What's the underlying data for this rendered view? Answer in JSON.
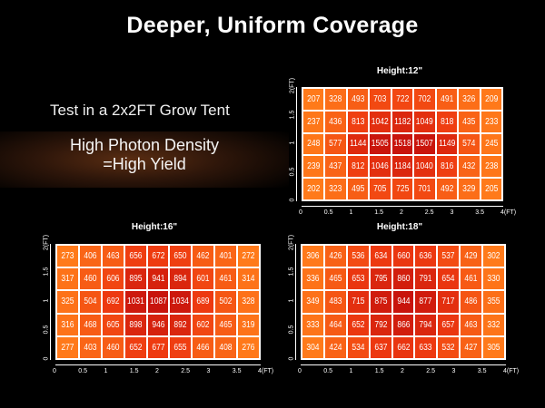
{
  "title": "Deeper, Uniform Coverage",
  "tent_text": "Test in a 2x2FT Grow Tent",
  "density_line1": "High Photon Density",
  "density_line2": "=High Yield",
  "axes": {
    "x_ticks": [
      "0",
      "0.5",
      "1",
      "1.5",
      "2",
      "2.5",
      "3",
      "3.5",
      "4(FT)"
    ],
    "y_ticks": [
      "0",
      "0.5",
      "1",
      "1.5",
      "2(FT)"
    ]
  },
  "colors": {
    "low": "#ff7a1a",
    "mid": "#ee3a10",
    "high": "#c8140c"
  },
  "panels": [
    {
      "id": "h12",
      "title": "Height:12\"",
      "rows": [
        [
          207,
          328,
          493,
          703,
          722,
          702,
          491,
          326,
          209
        ],
        [
          237,
          436,
          813,
          1042,
          1182,
          1049,
          818,
          435,
          233
        ],
        [
          248,
          577,
          1144,
          1505,
          1518,
          1507,
          1149,
          574,
          245
        ],
        [
          239,
          437,
          812,
          1046,
          1184,
          1040,
          816,
          432,
          238
        ],
        [
          202,
          323,
          495,
          705,
          725,
          701,
          492,
          329,
          205
        ]
      ]
    },
    {
      "id": "h16",
      "title": "Height:16\"",
      "rows": [
        [
          273,
          406,
          463,
          656,
          672,
          650,
          462,
          401,
          272
        ],
        [
          317,
          460,
          606,
          895,
          941,
          894,
          601,
          461,
          314
        ],
        [
          325,
          504,
          692,
          1031,
          1087,
          1034,
          689,
          502,
          328
        ],
        [
          316,
          468,
          605,
          898,
          946,
          892,
          602,
          465,
          319
        ],
        [
          277,
          403,
          460,
          652,
          677,
          655,
          466,
          408,
          276
        ]
      ]
    },
    {
      "id": "h18",
      "title": "Height:18\"",
      "rows": [
        [
          306,
          426,
          536,
          634,
          660,
          636,
          537,
          429,
          302
        ],
        [
          336,
          465,
          653,
          795,
          860,
          791,
          654,
          461,
          330
        ],
        [
          349,
          483,
          715,
          875,
          944,
          877,
          717,
          486,
          355
        ],
        [
          333,
          464,
          652,
          792,
          866,
          794,
          657,
          463,
          332
        ],
        [
          304,
          424,
          534,
          637,
          662,
          633,
          532,
          427,
          305
        ]
      ]
    }
  ]
}
